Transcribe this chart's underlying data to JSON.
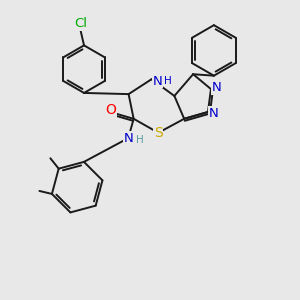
{
  "bg_color": "#e8e8e8",
  "bond_color": "#1a1a1a",
  "bond_width": 1.4,
  "atom_colors": {
    "N": "#0000cc",
    "S": "#ccaa00",
    "O": "#ff0000",
    "Cl": "#00aa00",
    "H_teal": "#5a9ea0"
  },
  "font_size": 9.0,
  "font_size_h": 7.5
}
